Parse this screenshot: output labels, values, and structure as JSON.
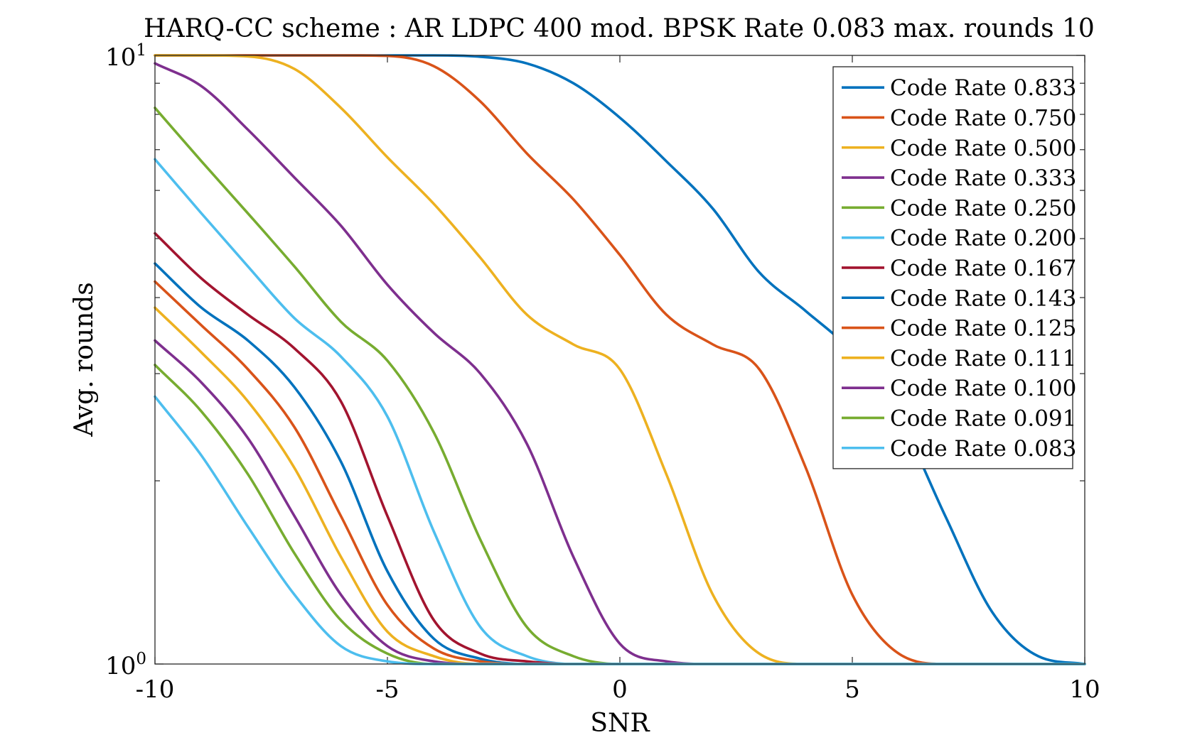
{
  "chart_data": {
    "type": "line",
    "title": "HARQ-CC scheme : AR LDPC 400 mod. BPSK Rate 0.083 max. rounds 10",
    "xlabel": "SNR",
    "ylabel": "Avg. rounds",
    "xlim": [
      -10,
      10
    ],
    "ylim": [
      1,
      10
    ],
    "yscale": "log",
    "grid": false,
    "legend_position": "top-right",
    "x_ticks": [
      {
        "value": -10,
        "label": "-10"
      },
      {
        "value": -5,
        "label": "-5"
      },
      {
        "value": 0,
        "label": "0"
      },
      {
        "value": 5,
        "label": "5"
      },
      {
        "value": 10,
        "label": "10"
      }
    ],
    "y_ticks": [
      {
        "value": 1,
        "label": "10",
        "exp": "0"
      },
      {
        "value": 10,
        "label": "10",
        "exp": "1"
      }
    ],
    "x": [
      -10,
      -9,
      -8,
      -7,
      -6,
      -5,
      -4,
      -3,
      -2,
      -1,
      0,
      1,
      2,
      3,
      4,
      5,
      6,
      7,
      8,
      9,
      10
    ],
    "series": [
      {
        "name": "Code Rate 0.833",
        "color": "#0072BD",
        "values": [
          10,
          10,
          10,
          10,
          10,
          10,
          10,
          9.95,
          9.7,
          9.0,
          7.9,
          6.7,
          5.6,
          4.4,
          3.8,
          3.25,
          2.55,
          1.75,
          1.22,
          1.03,
          1.0
        ]
      },
      {
        "name": "Code Rate 0.750",
        "color": "#D95319",
        "values": [
          10,
          10,
          10,
          10,
          10,
          9.98,
          9.6,
          8.4,
          6.9,
          5.8,
          4.7,
          3.75,
          3.35,
          3.05,
          2.1,
          1.3,
          1.04,
          1.0,
          1.0,
          1.0,
          1.0
        ]
      },
      {
        "name": "Code Rate 0.500",
        "color": "#EDB120",
        "values": [
          10,
          10,
          9.96,
          9.5,
          8.2,
          6.8,
          5.7,
          4.65,
          3.75,
          3.35,
          3.05,
          2.05,
          1.3,
          1.04,
          1.0,
          1.0,
          1.0,
          1.0,
          1.0,
          1.0,
          1.0
        ]
      },
      {
        "name": "Code Rate 0.333",
        "color": "#7E2F8E",
        "values": [
          9.7,
          8.9,
          7.55,
          6.3,
          5.25,
          4.2,
          3.5,
          3.0,
          2.3,
          1.5,
          1.08,
          1.01,
          1.0,
          1.0,
          1.0,
          1.0,
          1.0,
          1.0,
          1.0,
          1.0,
          1.0
        ]
      },
      {
        "name": "Code Rate 0.250",
        "color": "#77AC30",
        "values": [
          8.2,
          6.7,
          5.5,
          4.5,
          3.65,
          3.15,
          2.4,
          1.6,
          1.15,
          1.03,
          1.0,
          1.0,
          1.0,
          1.0,
          1.0,
          1.0,
          1.0,
          1.0,
          1.0,
          1.0,
          1.0
        ]
      },
      {
        "name": "Code Rate 0.200",
        "color": "#4DBEEE",
        "values": [
          6.75,
          5.5,
          4.5,
          3.7,
          3.2,
          2.55,
          1.65,
          1.15,
          1.03,
          1.0,
          1.0,
          1.0,
          1.0,
          1.0,
          1.0,
          1.0,
          1.0,
          1.0,
          1.0,
          1.0,
          1.0
        ]
      },
      {
        "name": "Code Rate 0.167",
        "color": "#A2142F",
        "values": [
          5.1,
          4.3,
          3.75,
          3.3,
          2.7,
          1.75,
          1.18,
          1.04,
          1.01,
          1.0,
          1.0,
          1.0,
          1.0,
          1.0,
          1.0,
          1.0,
          1.0,
          1.0,
          1.0,
          1.0,
          1.0
        ]
      },
      {
        "name": "Code Rate 0.143",
        "color": "#0072BD",
        "values": [
          4.55,
          3.85,
          3.4,
          2.85,
          2.15,
          1.42,
          1.1,
          1.02,
          1.0,
          1.0,
          1.0,
          1.0,
          1.0,
          1.0,
          1.0,
          1.0,
          1.0,
          1.0,
          1.0,
          1.0,
          1.0
        ]
      },
      {
        "name": "Code Rate 0.125",
        "color": "#D95319",
        "values": [
          4.25,
          3.6,
          3.05,
          2.45,
          1.75,
          1.25,
          1.06,
          1.01,
          1.0,
          1.0,
          1.0,
          1.0,
          1.0,
          1.0,
          1.0,
          1.0,
          1.0,
          1.0,
          1.0,
          1.0,
          1.0
        ]
      },
      {
        "name": "Code Rate 0.111",
        "color": "#EDB120",
        "values": [
          3.85,
          3.25,
          2.7,
          2.1,
          1.5,
          1.13,
          1.03,
          1.0,
          1.0,
          1.0,
          1.0,
          1.0,
          1.0,
          1.0,
          1.0,
          1.0,
          1.0,
          1.0,
          1.0,
          1.0,
          1.0
        ]
      },
      {
        "name": "Code Rate 0.100",
        "color": "#7E2F8E",
        "values": [
          3.4,
          2.9,
          2.35,
          1.75,
          1.3,
          1.07,
          1.01,
          1.0,
          1.0,
          1.0,
          1.0,
          1.0,
          1.0,
          1.0,
          1.0,
          1.0,
          1.0,
          1.0,
          1.0,
          1.0,
          1.0
        ]
      },
      {
        "name": "Code Rate 0.091",
        "color": "#77AC30",
        "values": [
          3.1,
          2.6,
          2.05,
          1.52,
          1.18,
          1.04,
          1.0,
          1.0,
          1.0,
          1.0,
          1.0,
          1.0,
          1.0,
          1.0,
          1.0,
          1.0,
          1.0,
          1.0,
          1.0,
          1.0,
          1.0
        ]
      },
      {
        "name": "Code Rate 0.083",
        "color": "#4DBEEE",
        "values": [
          2.75,
          2.2,
          1.68,
          1.3,
          1.07,
          1.01,
          1.0,
          1.0,
          1.0,
          1.0,
          1.0,
          1.0,
          1.0,
          1.0,
          1.0,
          1.0,
          1.0,
          1.0,
          1.0,
          1.0,
          1.0
        ]
      }
    ]
  }
}
